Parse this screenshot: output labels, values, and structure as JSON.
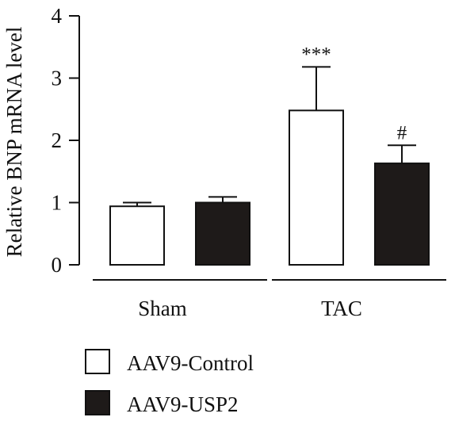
{
  "chart_data": {
    "type": "bar",
    "ylabel": "Relative BNP mRNA level",
    "ylim": [
      0,
      4
    ],
    "yticks": [
      0,
      1,
      2,
      3,
      4
    ],
    "categories": [
      "Sham",
      "TAC"
    ],
    "series": [
      {
        "name": "AAV9-Control",
        "color": "#ffffff",
        "values": [
          0.94,
          2.48
        ],
        "errors": [
          0.06,
          0.7
        ],
        "annotations": [
          "",
          "***"
        ]
      },
      {
        "name": "AAV9-USP2",
        "color": "#1e1a19",
        "values": [
          1.0,
          1.63
        ],
        "errors": [
          0.09,
          0.29
        ],
        "annotations": [
          "",
          "#"
        ]
      }
    ],
    "legend_position": "bottom-left",
    "grid": false
  }
}
